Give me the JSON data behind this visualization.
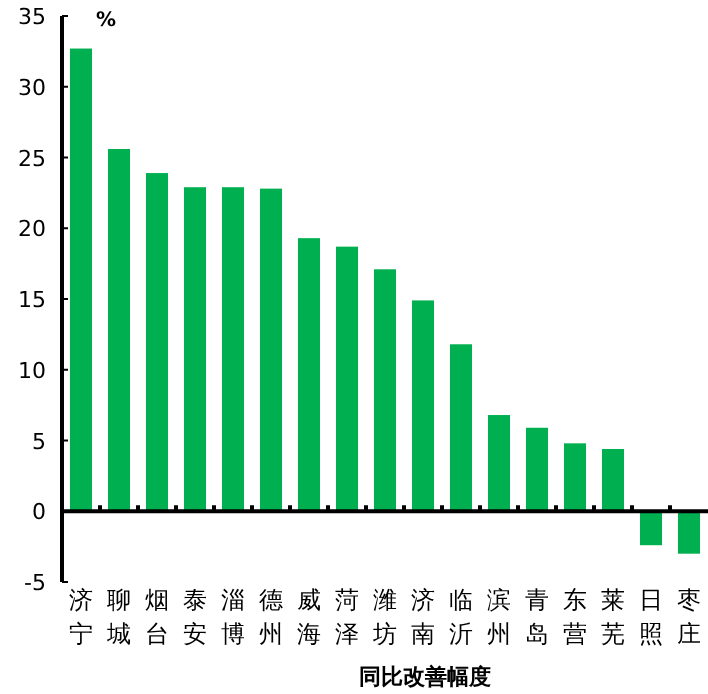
{
  "chart_data": {
    "type": "bar",
    "ylabel": "%",
    "xlabel": "同比改善幅度",
    "categories": [
      "济宁",
      "聊城",
      "烟台",
      "泰安",
      "淄博",
      "德州",
      "威海",
      "菏泽",
      "潍坊",
      "济南",
      "临沂",
      "滨州",
      "青岛",
      "东营",
      "莱芜",
      "日照",
      "枣庄"
    ],
    "values": [
      32.7,
      25.6,
      23.9,
      22.9,
      22.9,
      22.8,
      19.3,
      18.7,
      17.1,
      14.9,
      11.8,
      6.8,
      5.9,
      4.8,
      4.4,
      -2.4,
      -3.0
    ],
    "color": "#00b050",
    "ylim": [
      -5,
      35
    ],
    "yticks": [
      -5,
      0,
      5,
      10,
      15,
      20,
      25,
      30,
      35
    ]
  }
}
